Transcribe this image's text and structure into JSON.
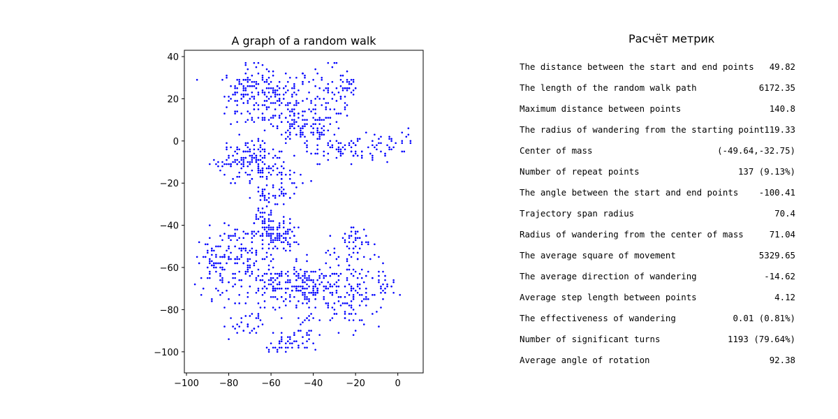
{
  "chart_data": {
    "type": "scatter",
    "title": "A graph of a random walk",
    "xlim": [
      -101,
      12
    ],
    "ylim": [
      -110,
      43
    ],
    "xticks": [
      -100,
      -80,
      -60,
      -40,
      -20,
      0
    ],
    "yticks": [
      40,
      20,
      0,
      -20,
      -40,
      -60,
      -80,
      -100
    ],
    "xtick_labels": [
      "−100",
      "−80",
      "−60",
      "−40",
      "−20",
      "0"
    ],
    "ytick_labels": [
      "40",
      "20",
      "0",
      "−20",
      "−40",
      "−60",
      "−80",
      "−100"
    ],
    "marker_color": "#0000ff",
    "point_count": 1500,
    "clusters": [
      {
        "cx": -60,
        "cy": 20,
        "sx": 10,
        "sy": 8,
        "n": 180
      },
      {
        "cx": -72,
        "cy": 25,
        "sx": 5,
        "sy": 5,
        "n": 60
      },
      {
        "cx": -35,
        "cy": 15,
        "sx": 6,
        "sy": 10,
        "n": 80
      },
      {
        "cx": -25,
        "cy": 25,
        "sx": 4,
        "sy": 4,
        "n": 40
      },
      {
        "cx": -45,
        "cy": 5,
        "sx": 8,
        "sy": 4,
        "n": 80
      },
      {
        "cx": -20,
        "cy": -3,
        "sx": 8,
        "sy": 3,
        "n": 60
      },
      {
        "cx": -5,
        "cy": -3,
        "sx": 5,
        "sy": 3,
        "n": 20
      },
      {
        "cx": 4,
        "cy": 3,
        "sx": 2,
        "sy": 2,
        "n": 8
      },
      {
        "cx": -68,
        "cy": -10,
        "sx": 8,
        "sy": 6,
        "n": 140
      },
      {
        "cx": -80,
        "cy": -11,
        "sx": 3,
        "sy": 2,
        "n": 20
      },
      {
        "cx": -55,
        "cy": -20,
        "sx": 4,
        "sy": 5,
        "n": 40
      },
      {
        "cx": -64,
        "cy": -32,
        "sx": 3,
        "sy": 6,
        "n": 40
      },
      {
        "cx": -58,
        "cy": -45,
        "sx": 5,
        "sy": 4,
        "n": 120
      },
      {
        "cx": -85,
        "cy": -58,
        "sx": 5,
        "sy": 8,
        "n": 90
      },
      {
        "cx": -72,
        "cy": -55,
        "sx": 6,
        "sy": 7,
        "n": 90
      },
      {
        "cx": -57,
        "cy": -68,
        "sx": 7,
        "sy": 5,
        "n": 120
      },
      {
        "cx": -40,
        "cy": -70,
        "sx": 7,
        "sy": 6,
        "n": 140
      },
      {
        "cx": -22,
        "cy": -70,
        "sx": 7,
        "sy": 10,
        "n": 120
      },
      {
        "cx": -20,
        "cy": -47,
        "sx": 4,
        "sy": 4,
        "n": 40
      },
      {
        "cx": -8,
        "cy": -72,
        "sx": 3,
        "sy": 5,
        "n": 20
      },
      {
        "cx": -73,
        "cy": -88,
        "sx": 5,
        "sy": 3,
        "n": 30
      },
      {
        "cx": -55,
        "cy": -97,
        "sx": 3,
        "sy": 3,
        "n": 30
      },
      {
        "cx": -45,
        "cy": -92,
        "sx": 4,
        "sy": 5,
        "n": 30
      }
    ]
  },
  "metrics": {
    "title": "Расчёт метрик",
    "rows": [
      {
        "label": "The distance between the start and end points",
        "value": "49.82"
      },
      {
        "label": "The length of the random walk path",
        "value": "6172.35"
      },
      {
        "label": "Maximum distance between points",
        "value": "140.8"
      },
      {
        "label": "The radius of wandering from the starting point",
        "value": "119.33"
      },
      {
        "label": "Center of mass",
        "value": "(-49.64,-32.75)"
      },
      {
        "label": "Number of repeat points",
        "value": "137 (9.13%)"
      },
      {
        "label": "The angle between the start and end points",
        "value": "-100.41"
      },
      {
        "label": "Trajectory span radius",
        "value": "70.4"
      },
      {
        "label": "Radius of wandering from the center of mass",
        "value": "71.04"
      },
      {
        "label": "The average square of movement",
        "value": "5329.65"
      },
      {
        "label": "The average direction of wandering",
        "value": "-14.62"
      },
      {
        "label": "Average step length between points",
        "value": "4.12"
      },
      {
        "label": "The effectiveness of wandering",
        "value": "0.01 (0.81%)"
      },
      {
        "label": "Number of significant turns",
        "value": "1193 (79.64%)"
      },
      {
        "label": "Average angle of rotation",
        "value": "92.38"
      }
    ]
  }
}
